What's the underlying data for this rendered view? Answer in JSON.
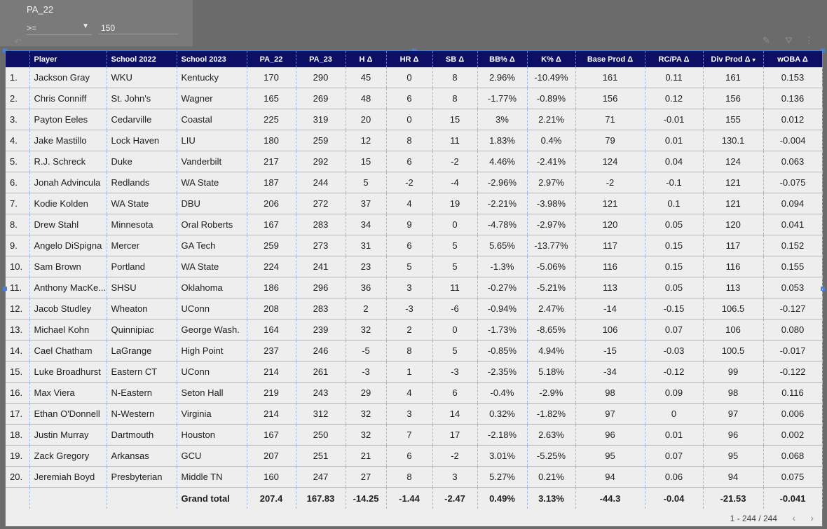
{
  "filter": {
    "title": "PA_22",
    "operator": ">=",
    "value": "150"
  },
  "table": {
    "columns": [
      "Player",
      "School 2022",
      "School 2023",
      "PA_22",
      "PA_23",
      "H Δ",
      "HR Δ",
      "SB Δ",
      "BB% Δ",
      "K% Δ",
      "Base Prod Δ",
      "RC/PA Δ",
      "Div Prod Δ",
      "wOBA Δ"
    ],
    "sort_indicator": "▾",
    "rows": [
      [
        "1.",
        "Jackson Gray",
        "WKU",
        "Kentucky",
        "170",
        "290",
        "45",
        "0",
        "8",
        "2.96%",
        "-10.49%",
        "161",
        "0.11",
        "161",
        "0.153"
      ],
      [
        "2.",
        "Chris Conniff",
        "St. John's",
        "Wagner",
        "165",
        "269",
        "48",
        "6",
        "8",
        "-1.77%",
        "-0.89%",
        "156",
        "0.12",
        "156",
        "0.136"
      ],
      [
        "3.",
        "Payton Eeles",
        "Cedarville",
        "Coastal",
        "225",
        "319",
        "20",
        "0",
        "15",
        "3%",
        "2.21%",
        "71",
        "-0.01",
        "155",
        "0.012"
      ],
      [
        "4.",
        "Jake Mastillo",
        "Lock Haven",
        "LIU",
        "180",
        "259",
        "12",
        "8",
        "11",
        "1.83%",
        "0.4%",
        "79",
        "0.01",
        "130.1",
        "-0.004"
      ],
      [
        "5.",
        "R.J. Schreck",
        "Duke",
        "Vanderbilt",
        "217",
        "292",
        "15",
        "6",
        "-2",
        "4.46%",
        "-2.41%",
        "124",
        "0.04",
        "124",
        "0.063"
      ],
      [
        "6.",
        "Jonah Advincula",
        "Redlands",
        "WA State",
        "187",
        "244",
        "5",
        "-2",
        "-4",
        "-2.96%",
        "2.97%",
        "-2",
        "-0.1",
        "121",
        "-0.075"
      ],
      [
        "7.",
        "Kodie Kolden",
        "WA State",
        "DBU",
        "206",
        "272",
        "37",
        "4",
        "19",
        "-2.21%",
        "-3.98%",
        "121",
        "0.1",
        "121",
        "0.094"
      ],
      [
        "8.",
        "Drew Stahl",
        "Minnesota",
        "Oral Roberts",
        "167",
        "283",
        "34",
        "9",
        "0",
        "-4.78%",
        "-2.97%",
        "120",
        "0.05",
        "120",
        "0.041"
      ],
      [
        "9.",
        "Angelo DiSpigna",
        "Mercer",
        "GA Tech",
        "259",
        "273",
        "31",
        "6",
        "5",
        "5.65%",
        "-13.77%",
        "117",
        "0.15",
        "117",
        "0.152"
      ],
      [
        "10.",
        "Sam Brown",
        "Portland",
        "WA State",
        "224",
        "241",
        "23",
        "5",
        "5",
        "-1.3%",
        "-5.06%",
        "116",
        "0.15",
        "116",
        "0.155"
      ],
      [
        "11.",
        "Anthony MacKe...",
        "SHSU",
        "Oklahoma",
        "186",
        "296",
        "36",
        "3",
        "11",
        "-0.27%",
        "-5.21%",
        "113",
        "0.05",
        "113",
        "0.053"
      ],
      [
        "12.",
        "Jacob Studley",
        "Wheaton",
        "UConn",
        "208",
        "283",
        "2",
        "-3",
        "-6",
        "-0.94%",
        "2.47%",
        "-14",
        "-0.15",
        "106.5",
        "-0.127"
      ],
      [
        "13.",
        "Michael Kohn",
        "Quinnipiac",
        "George Wash.",
        "164",
        "239",
        "32",
        "2",
        "0",
        "-1.73%",
        "-8.65%",
        "106",
        "0.07",
        "106",
        "0.080"
      ],
      [
        "14.",
        "Cael Chatham",
        "LaGrange",
        "High Point",
        "237",
        "246",
        "-5",
        "8",
        "5",
        "-0.85%",
        "4.94%",
        "-15",
        "-0.03",
        "100.5",
        "-0.017"
      ],
      [
        "15.",
        "Luke Broadhurst",
        "Eastern CT",
        "UConn",
        "214",
        "261",
        "-3",
        "1",
        "-3",
        "-2.35%",
        "5.18%",
        "-34",
        "-0.12",
        "99",
        "-0.122"
      ],
      [
        "16.",
        "Max Viera",
        "N-Eastern",
        "Seton Hall",
        "219",
        "243",
        "29",
        "4",
        "6",
        "-0.4%",
        "-2.9%",
        "98",
        "0.09",
        "98",
        "0.116"
      ],
      [
        "17.",
        "Ethan O'Donnell",
        "N-Western",
        "Virginia",
        "214",
        "312",
        "32",
        "3",
        "14",
        "0.32%",
        "-1.82%",
        "97",
        "0",
        "97",
        "0.006"
      ],
      [
        "18.",
        "Justin Murray",
        "Dartmouth",
        "Houston",
        "167",
        "250",
        "32",
        "7",
        "17",
        "-2.18%",
        "2.63%",
        "96",
        "0.01",
        "96",
        "0.002"
      ],
      [
        "19.",
        "Zack Gregory",
        "Arkansas",
        "GCU",
        "207",
        "251",
        "21",
        "6",
        "-2",
        "3.01%",
        "-5.25%",
        "95",
        "0.07",
        "95",
        "0.068"
      ],
      [
        "20.",
        "Jeremiah Boyd",
        "Presbyterian",
        "Middle TN",
        "160",
        "247",
        "27",
        "8",
        "3",
        "5.27%",
        "0.21%",
        "94",
        "0.06",
        "94",
        "0.075"
      ]
    ],
    "grand_total": {
      "label": "Grand total",
      "values": [
        "207.4",
        "167.83",
        "-14.25",
        "-1.44",
        "-2.47",
        "0.49%",
        "3.13%",
        "-44.3",
        "-0.04",
        "-21.53",
        "-0.041"
      ]
    }
  },
  "pagination": {
    "range": "1 - 244 / 244",
    "prev": "‹",
    "next": "›"
  },
  "toolbar": {
    "edit_icon": "✎",
    "filter_icon": "⛛",
    "more_icon": "⋮",
    "undo_icon": "↶"
  }
}
